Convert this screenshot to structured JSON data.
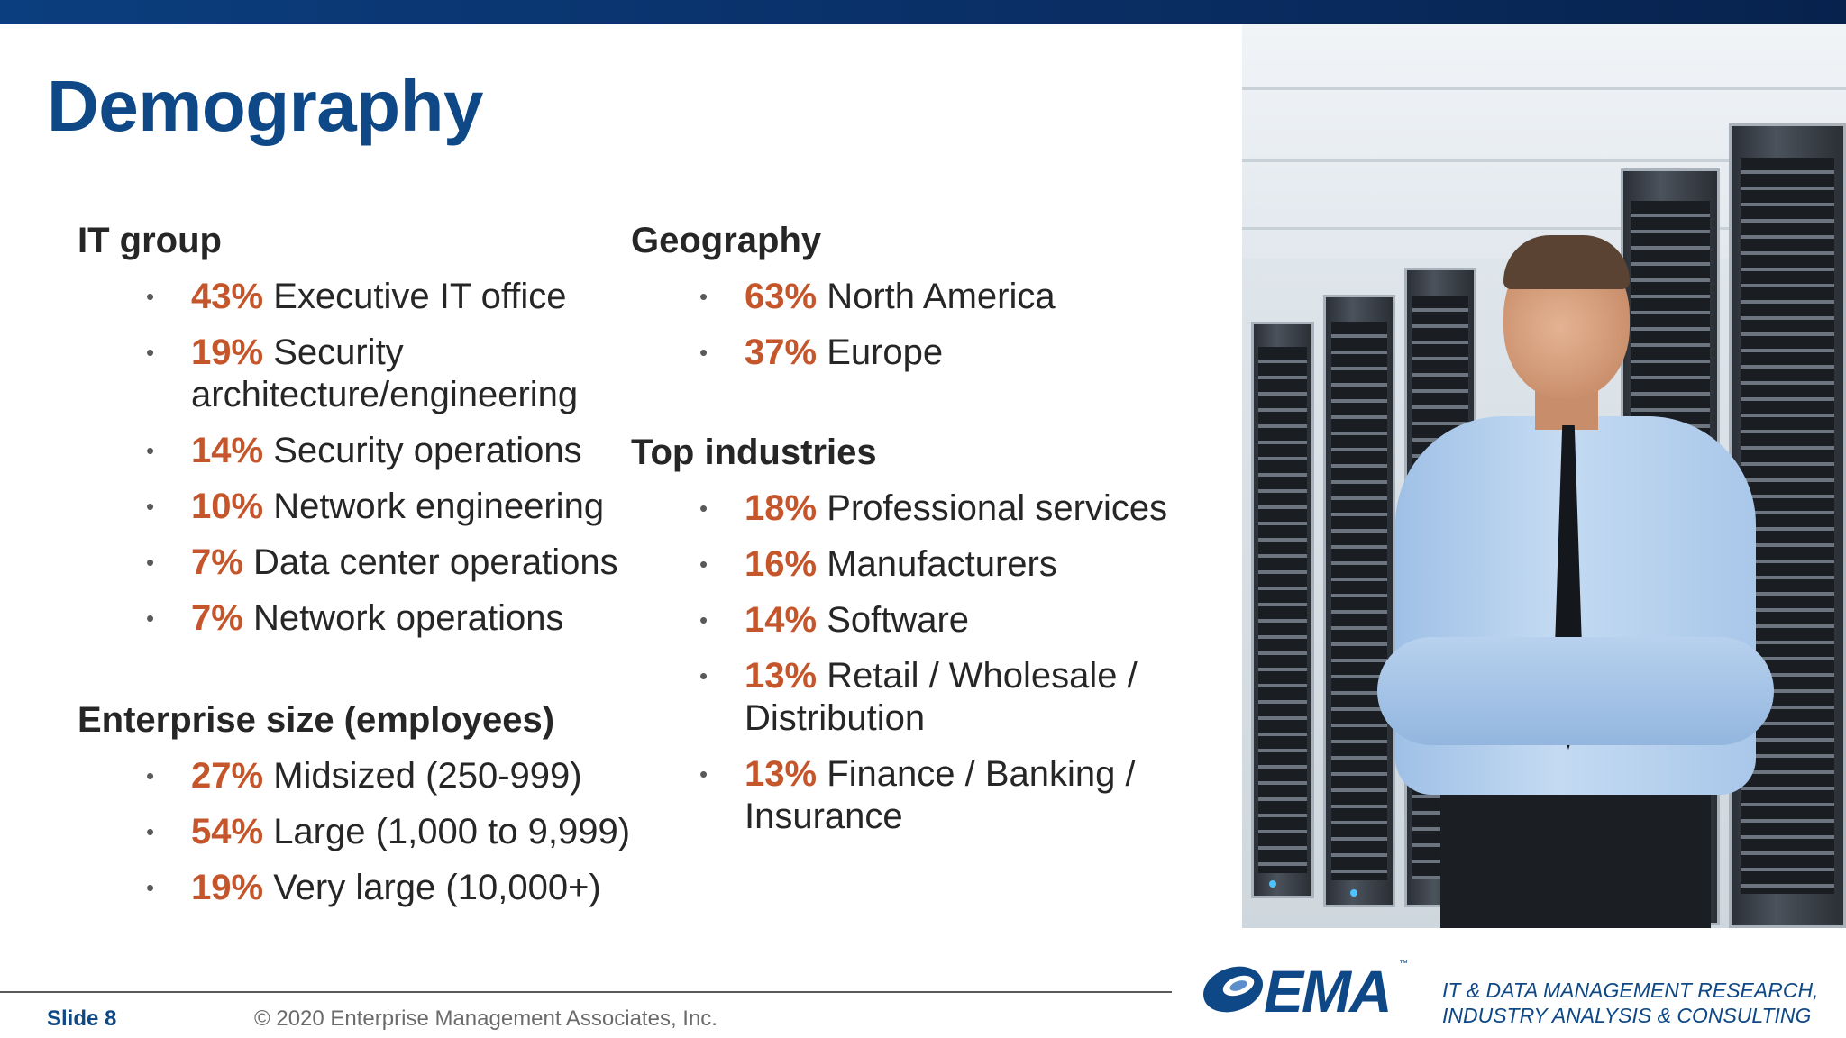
{
  "slide": {
    "title": "Demography",
    "slide_number": "Slide 8",
    "copyright": "© 2020 Enterprise Management Associates, Inc."
  },
  "it_group": {
    "heading": "IT group",
    "items": [
      {
        "pct": "43%",
        "label": "Executive IT office",
        "label2": ""
      },
      {
        "pct": "19%",
        "label": "Security",
        "label2": "architecture/engineering"
      },
      {
        "pct": "14%",
        "label": "Security operations",
        "label2": ""
      },
      {
        "pct": "10%",
        "label": "Network engineering",
        "label2": ""
      },
      {
        "pct": "7%",
        "label": "Data center operations",
        "label2": ""
      },
      {
        "pct": "7%",
        "label": "Network operations",
        "label2": ""
      }
    ]
  },
  "enterprise_size": {
    "heading": "Enterprise size (employees)",
    "items": [
      {
        "pct": "27%",
        "label": "Midsized (250-999)"
      },
      {
        "pct": "54%",
        "label": "Large (1,000 to 9,999)"
      },
      {
        "pct": "19%",
        "label": "Very large (10,000+)"
      }
    ]
  },
  "geography": {
    "heading": "Geography",
    "items": [
      {
        "pct": "63%",
        "label": "North America"
      },
      {
        "pct": "37%",
        "label": "Europe"
      }
    ]
  },
  "top_industries": {
    "heading": "Top industries",
    "items": [
      {
        "pct": "18%",
        "label": "Professional services",
        "label2": ""
      },
      {
        "pct": "16%",
        "label": "Manufacturers",
        "label2": ""
      },
      {
        "pct": "14%",
        "label": "Software",
        "label2": ""
      },
      {
        "pct": "13%",
        "label": "Retail / Wholesale /",
        "label2": "Distribution"
      },
      {
        "pct": "13%",
        "label": "Finance / Banking /",
        "label2": "Insurance"
      }
    ]
  },
  "logo": {
    "text": "EMA",
    "tm": "™",
    "tagline_line1": "IT & DATA MANAGEMENT RESEARCH,",
    "tagline_line2": "INDUSTRY ANALYSIS & CONSULTING"
  },
  "colors": {
    "title_blue": "#0f4886",
    "percent_orange": "#c5562c",
    "top_bar": "#0b3e7e"
  }
}
